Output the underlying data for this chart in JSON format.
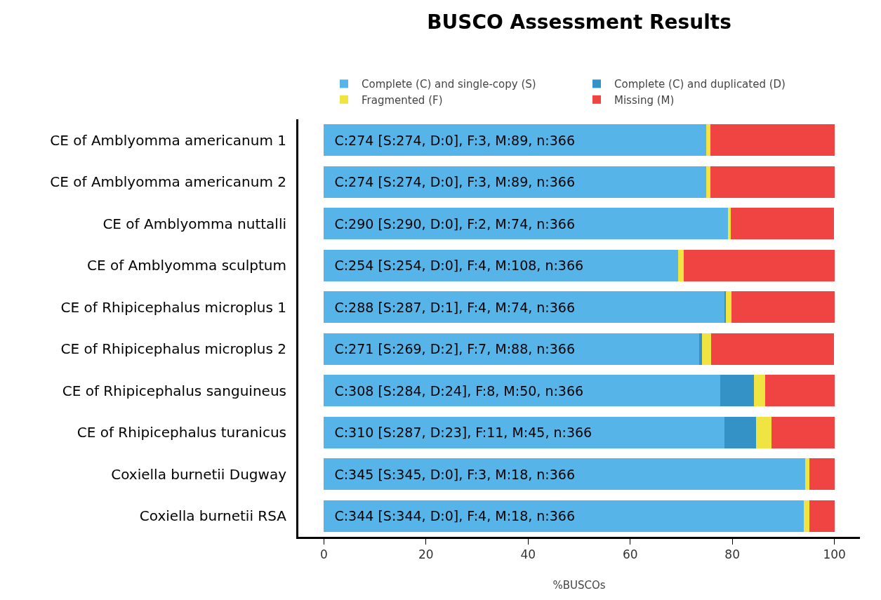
{
  "chart_data": {
    "type": "bar",
    "orientation": "horizontal",
    "stacked": true,
    "title": "BUSCO Assessment Results",
    "xlabel": "%BUSCOs",
    "categories": [
      "CE of Amblyomma americanum 1",
      "CE of Amblyomma americanum 2",
      "CE of Amblyomma nuttalli",
      "CE of Amblyomma sculptum",
      "CE of Rhipicephalus microplus 1",
      "CE of Rhipicephalus microplus 2",
      "CE of Rhipicephalus sanguineus",
      "CE of Rhipicephalus turanicus",
      "Coxiella burnetii Dugway",
      "Coxiella burnetii RSA"
    ],
    "series": [
      {
        "name": "Complete (C) and single-copy (S)",
        "color": "#56b4e9",
        "values": [
          74.9,
          74.9,
          79.2,
          69.4,
          78.4,
          73.5,
          77.6,
          78.4,
          94.3,
          94.0
        ],
        "value_labels": [
          "C:274 [S:274, D:0], F:3, M:89, n:366",
          "C:274 [S:274, D:0], F:3, M:89, n:366",
          "C:290 [S:290, D:0], F:2, M:74, n:366",
          "C:254 [S:254, D:0], F:4, M:108, n:366",
          "C:288 [S:287, D:1], F:4, M:74, n:366",
          "C:271 [S:269, D:2], F:7, M:88, n:366",
          "C:308 [S:284, D:24], F:8, M:50, n:366",
          "C:310 [S:287, D:23], F:11, M:45, n:366",
          "C:345 [S:345, D:0], F:3, M:18, n:366",
          "C:344 [S:344, D:0], F:4, M:18, n:366"
        ]
      },
      {
        "name": "Complete (C) and duplicated (D)",
        "color": "#3492c7",
        "values": [
          0,
          0,
          0,
          0,
          0.3,
          0.5,
          6.6,
          6.3,
          0,
          0
        ]
      },
      {
        "name": "Fragmented (F)",
        "color": "#f0e442",
        "values": [
          0.8,
          0.8,
          0.5,
          1.1,
          1.1,
          1.9,
          2.2,
          3.0,
          0.8,
          1.1
        ]
      },
      {
        "name": "Missing (M)",
        "color": "#f04442",
        "values": [
          24.3,
          24.3,
          20.2,
          29.5,
          20.2,
          24.0,
          13.7,
          12.3,
          4.9,
          4.9
        ]
      }
    ],
    "xlim": [
      -5,
      105
    ],
    "xticks": [
      0,
      20,
      40,
      60,
      80,
      100
    ],
    "grid": false,
    "legend": "top"
  }
}
